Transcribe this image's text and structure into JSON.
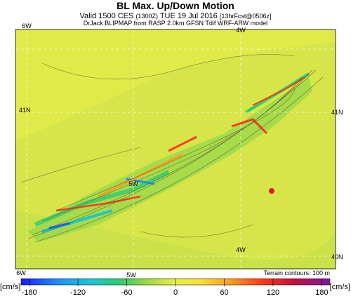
{
  "header": {
    "title": "BL Max. Up/Down Motion",
    "valid": "Valid 1500 CES",
    "utc": "(1300Z)",
    "date": "TUE 19 Jul 2016",
    "forecast": "[13hrFcst@0506z]",
    "source": "DrJack BLIPMAP from RASP 2.0km GFSN Tdif WRF-ARW model"
  },
  "map": {
    "labels": [
      "6W",
      "4W",
      "41N",
      "41N",
      "5W",
      "4W",
      "40N",
      "6W",
      "5W"
    ],
    "terrain_note": "Terrain contours: 100 m"
  },
  "colorbar": {
    "unit_left": "[cm/s]",
    "unit_right": "[cm/s]",
    "lim": [
      -190,
      190
    ],
    "ticks": [
      -180,
      -120,
      -60,
      0,
      60,
      120,
      180
    ]
  }
}
